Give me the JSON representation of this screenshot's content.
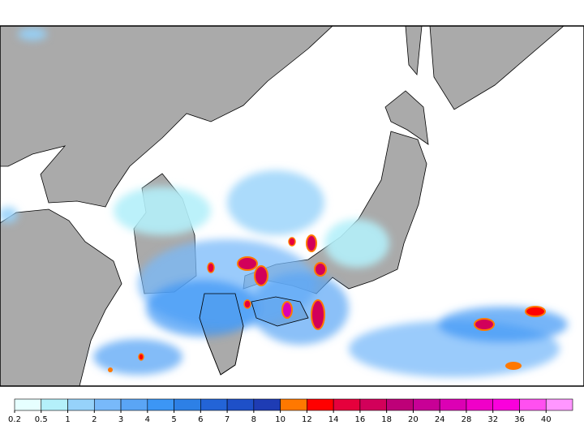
{
  "colorbar": {
    "levels": [
      0.2,
      0.5,
      1,
      2,
      3,
      4,
      5,
      6,
      7,
      8,
      10,
      12,
      14,
      16,
      18,
      20,
      24,
      28,
      32,
      36,
      40
    ],
    "colors": [
      "#e6ffff",
      "#b4f0fa",
      "#96d2fa",
      "#78b9fa",
      "#5aa5f5",
      "#3c96f5",
      "#2d80e6",
      "#2364d7",
      "#1e50c8",
      "#1e3cb4",
      "#ff7800",
      "#ff0000",
      "#e6003c",
      "#d2005a",
      "#be0078",
      "#c80096",
      "#dc00b4",
      "#f000c8",
      "#fa00dc",
      "#ff50f0",
      "#ff96ff"
    ]
  }
}
